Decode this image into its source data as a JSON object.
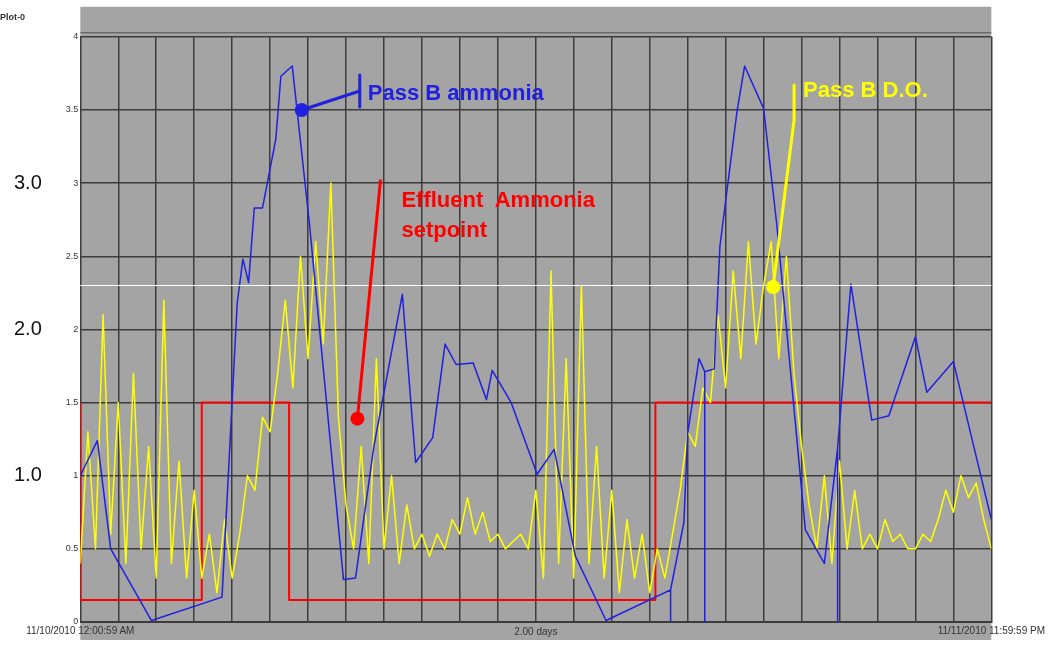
{
  "chart_data": {
    "type": "line",
    "title": "Plot-0",
    "xlabel": "2.00 days",
    "xlim": [
      "2010-11-10T00:00",
      "2010-11-12T00:00"
    ],
    "xticks": [
      {
        "value": "2010-11-10T00:00",
        "label": "11/10/2010 12:00:59 AM"
      },
      {
        "value": "2010-11-10T02:00",
        "label": null
      },
      {
        "value": "2010-11-10T04:00",
        "label": null
      },
      {
        "value": "2010-11-10T06:00",
        "label": null
      },
      {
        "value": "2010-11-10T08:00",
        "label": null
      },
      {
        "value": "2010-11-10T10:00",
        "label": null
      },
      {
        "value": "2010-11-10T12:00",
        "label": null
      },
      {
        "value": "2010-11-10T14:00",
        "label": null
      },
      {
        "value": "2010-11-10T16:00",
        "label": null
      },
      {
        "value": "2010-11-10T18:00",
        "label": null
      },
      {
        "value": "2010-11-10T20:00",
        "label": null
      },
      {
        "value": "2010-11-10T22:00",
        "label": null
      },
      {
        "value": "2010-11-11T00:00",
        "label": null
      },
      {
        "value": "2010-11-11T02:00",
        "label": null
      },
      {
        "value": "2010-11-11T04:00",
        "label": null
      },
      {
        "value": "2010-11-11T06:00",
        "label": null
      },
      {
        "value": "2010-11-11T08:00",
        "label": null
      },
      {
        "value": "2010-11-11T10:00",
        "label": null
      },
      {
        "value": "2010-11-11T12:00",
        "label": null
      },
      {
        "value": "2010-11-11T14:00",
        "label": null
      },
      {
        "value": "2010-11-11T16:00",
        "label": null
      },
      {
        "value": "2010-11-11T18:00",
        "label": null
      },
      {
        "value": "2010-11-11T20:00",
        "label": null
      },
      {
        "value": "2010-11-11T22:00",
        "label": null
      },
      {
        "value": "2010-11-12T00:00",
        "label": "11/11/2010 11:59:59 PM"
      }
    ],
    "ylim": [
      0,
      4
    ],
    "yticks": [
      0,
      0.5,
      1,
      1.5,
      2,
      2.5,
      3,
      3.5,
      4
    ],
    "y2lim": [
      0,
      4
    ],
    "y2ticks": [
      {
        "value": 1,
        "label": "1.0"
      },
      {
        "value": 2,
        "label": "2.0"
      },
      {
        "value": 3,
        "label": "3.0"
      }
    ],
    "grid": true,
    "series": [
      {
        "color": "#2020e0",
        "x": [
          "2010-11-10T00:00",
          "2010-11-10T00:54",
          "2010-11-10T01:36",
          "2010-11-10T03:45",
          "2010-11-10T07:28",
          "2010-11-10T08:16",
          "2010-11-10T08:34",
          "2010-11-10T08:52",
          "2010-11-10T09:10",
          "2010-11-10T09:36",
          "2010-11-10T10:18",
          "2010-11-10T10:34",
          "2010-11-10T11:10",
          "2010-11-10T12:04",
          "2010-11-10T13:52",
          "2010-11-10T14:30",
          "2010-11-10T15:28",
          "2010-11-10T16:58",
          "2010-11-10T17:40",
          "2010-11-10T18:34",
          "2010-11-10T19:13",
          "2010-11-10T19:48",
          "2010-11-10T20:42",
          "2010-11-10T21:24",
          "2010-11-10T21:42",
          "2010-11-10T22:42",
          "2010-11-11T00:04",
          "2010-11-11T00:58",
          "2010-11-11T02:05",
          "2010-11-11T03:42",
          "2010-11-11T07:06",
          "2010-11-11T07:06",
          "2010-11-11T07:06",
          "2010-11-11T07:48",
          "2010-11-11T08:00",
          "2010-11-11T08:36",
          "2010-11-11T08:54",
          "2010-11-11T08:54",
          "2010-11-11T08:54",
          "2010-11-11T09:24",
          "2010-11-11T09:42",
          "2010-11-11T10:36",
          "2010-11-11T11:00",
          "2010-11-11T12:00",
          "2010-11-11T12:42",
          "2010-11-11T14:12",
          "2010-11-11T15:12",
          "2010-11-11T15:54",
          "2010-11-11T15:54",
          "2010-11-11T15:54",
          "2010-11-11T16:36",
          "2010-11-11T17:42",
          "2010-11-11T18:36",
          "2010-11-11T20:00",
          "2010-11-11T20:36",
          "2010-11-11T22:00",
          "2010-11-12T00:00"
        ],
        "values": [
          1.0,
          1.24,
          0.5,
          0.01,
          0.17,
          2.18,
          2.48,
          2.32,
          2.83,
          2.83,
          3.3,
          3.73,
          3.8,
          2.73,
          0.29,
          0.3,
          1.2,
          2.24,
          1.09,
          1.26,
          1.9,
          1.76,
          1.77,
          1.52,
          1.72,
          1.5,
          1.01,
          1.18,
          0.45,
          0.01,
          0.22,
          0,
          0.22,
          0.68,
          1.29,
          1.8,
          1.71,
          0,
          1.71,
          1.73,
          2.57,
          3.49,
          3.8,
          3.51,
          2.71,
          0.63,
          0.4,
          1.19,
          0,
          1.19,
          2.31,
          1.38,
          1.41,
          1.95,
          1.57,
          1.78,
          0.7
        ]
      },
      {
        "color": "#ffff00",
        "x": [
          "2010-11-10T00:00",
          "2010-11-10T00:24",
          "2010-11-10T00:48",
          "2010-11-10T01:12",
          "2010-11-10T01:36",
          "2010-11-10T02:00",
          "2010-11-10T02:24",
          "2010-11-10T02:48",
          "2010-11-10T03:12",
          "2010-11-10T03:36",
          "2010-11-10T04:00",
          "2010-11-10T04:24",
          "2010-11-10T04:48",
          "2010-11-10T05:12",
          "2010-11-10T05:36",
          "2010-11-10T06:00",
          "2010-11-10T06:24",
          "2010-11-10T06:48",
          "2010-11-10T07:12",
          "2010-11-10T07:36",
          "2010-11-10T08:00",
          "2010-11-10T08:24",
          "2010-11-10T08:48",
          "2010-11-10T09:12",
          "2010-11-10T09:36",
          "2010-11-10T10:00",
          "2010-11-10T10:24",
          "2010-11-10T10:48",
          "2010-11-10T11:12",
          "2010-11-10T11:36",
          "2010-11-10T12:00",
          "2010-11-10T12:24",
          "2010-11-10T12:48",
          "2010-11-10T13:12",
          "2010-11-10T13:36",
          "2010-11-10T14:00",
          "2010-11-10T14:24",
          "2010-11-10T14:48",
          "2010-11-10T15:12",
          "2010-11-10T15:36",
          "2010-11-10T16:00",
          "2010-11-10T16:24",
          "2010-11-10T16:48",
          "2010-11-10T17:12",
          "2010-11-10T17:36",
          "2010-11-10T18:00",
          "2010-11-10T18:24",
          "2010-11-10T18:48",
          "2010-11-10T19:12",
          "2010-11-10T19:36",
          "2010-11-10T20:00",
          "2010-11-10T20:24",
          "2010-11-10T20:48",
          "2010-11-10T21:12",
          "2010-11-10T21:36",
          "2010-11-10T22:00",
          "2010-11-10T22:24",
          "2010-11-10T22:48",
          "2010-11-10T23:12",
          "2010-11-10T23:36",
          "2010-11-11T00:00",
          "2010-11-11T00:24",
          "2010-11-11T00:48",
          "2010-11-11T01:12",
          "2010-11-11T01:36",
          "2010-11-11T02:00",
          "2010-11-11T02:24",
          "2010-11-11T02:48",
          "2010-11-11T03:12",
          "2010-11-11T03:36",
          "2010-11-11T04:00",
          "2010-11-11T04:24",
          "2010-11-11T04:48",
          "2010-11-11T05:12",
          "2010-11-11T05:36",
          "2010-11-11T06:00",
          "2010-11-11T06:24",
          "2010-11-11T06:48",
          "2010-11-11T07:12",
          "2010-11-11T07:36",
          "2010-11-11T08:00",
          "2010-11-11T08:24",
          "2010-11-11T08:48",
          "2010-11-11T09:12",
          "2010-11-11T09:36",
          "2010-11-11T10:00",
          "2010-11-11T10:24",
          "2010-11-11T10:48",
          "2010-11-11T11:12",
          "2010-11-11T11:36",
          "2010-11-11T12:00",
          "2010-11-11T12:24",
          "2010-11-11T12:48",
          "2010-11-11T13:12",
          "2010-11-11T13:36",
          "2010-11-11T14:00",
          "2010-11-11T14:24",
          "2010-11-11T14:48",
          "2010-11-11T15:12",
          "2010-11-11T15:36",
          "2010-11-11T16:00",
          "2010-11-11T16:24",
          "2010-11-11T16:48",
          "2010-11-11T17:12",
          "2010-11-11T17:36",
          "2010-11-11T18:00",
          "2010-11-11T18:24",
          "2010-11-11T18:48",
          "2010-11-11T19:12",
          "2010-11-11T19:36",
          "2010-11-11T20:00",
          "2010-11-11T20:24",
          "2010-11-11T20:48",
          "2010-11-11T21:12",
          "2010-11-11T21:36",
          "2010-11-11T22:00",
          "2010-11-11T22:24",
          "2010-11-11T22:48",
          "2010-11-11T23:12",
          "2010-11-11T23:36",
          "2010-11-12T00:00"
        ],
        "values": [
          0.4,
          1.3,
          0.5,
          2.1,
          0.6,
          1.5,
          0.4,
          1.7,
          0.5,
          1.2,
          0.3,
          2.2,
          0.4,
          1.1,
          0.3,
          0.9,
          0.3,
          0.6,
          0.2,
          0.7,
          0.3,
          0.6,
          1.0,
          0.9,
          1.4,
          1.3,
          1.7,
          2.2,
          1.6,
          2.5,
          1.8,
          2.6,
          1.9,
          3.0,
          1.4,
          0.8,
          0.5,
          1.2,
          0.4,
          1.8,
          0.5,
          1.0,
          0.4,
          0.8,
          0.5,
          0.6,
          0.45,
          0.6,
          0.5,
          0.7,
          0.6,
          0.85,
          0.6,
          0.75,
          0.55,
          0.6,
          0.5,
          0.55,
          0.6,
          0.5,
          0.9,
          0.3,
          2.4,
          0.4,
          1.8,
          0.3,
          2.3,
          0.4,
          1.2,
          0.3,
          0.9,
          0.2,
          0.7,
          0.3,
          0.6,
          0.2,
          0.5,
          0.3,
          0.6,
          0.9,
          1.3,
          1.2,
          1.6,
          1.5,
          2.1,
          1.6,
          2.4,
          1.8,
          2.6,
          1.9,
          2.3,
          2.6,
          1.8,
          2.5,
          1.7,
          1.2,
          0.8,
          0.5,
          1.0,
          0.4,
          1.1,
          0.5,
          0.9,
          0.5,
          0.6,
          0.5,
          0.7,
          0.55,
          0.6,
          0.5,
          0.5,
          0.6,
          0.55,
          0.7,
          0.9,
          0.75,
          1.0,
          0.85,
          0.95,
          0.7,
          0.5
        ]
      },
      {
        "type": "step",
        "color": "#ff0000",
        "x": [
          "2010-11-10T00:00",
          "2010-11-10T06:24",
          "2010-11-10T11:00",
          "2010-11-11T06:18",
          "2010-11-11T11:00",
          "2010-11-12T00:00"
        ],
        "values": [
          1.5,
          0.15,
          1.5,
          0.15,
          1.5,
          1.5
        ]
      }
    ],
    "ref_lines": [
      {
        "axis": "y",
        "value": 2.3,
        "color": "#ffffff"
      }
    ],
    "annotations": [
      {
        "text": "Pass B ammonia",
        "x": "2010-11-10T11:40",
        "y": 3.5
      },
      {
        "text": "Pass B D.O.",
        "x": "2010-11-11T12:30",
        "y": 2.29
      },
      {
        "text": "Effluent  Ammonia setpoint",
        "x": "2010-11-10T14:36",
        "y": 1.39
      }
    ]
  }
}
